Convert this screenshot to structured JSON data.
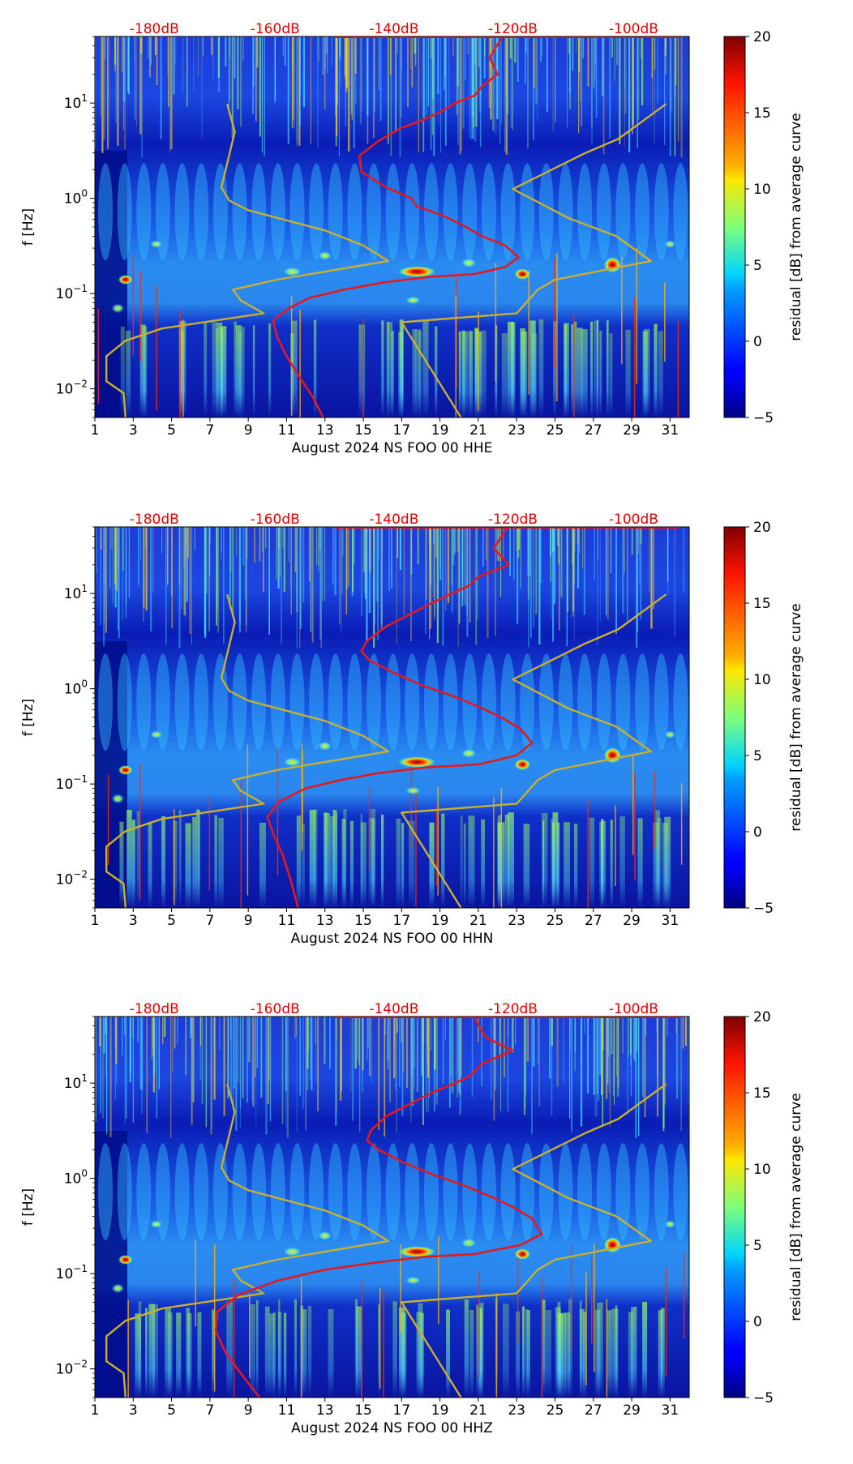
{
  "chart_data": [
    {
      "type": "heatmap",
      "title": "",
      "xlabel": "August 2024 NS FOO 00 HHE",
      "ylabel": "f [Hz]",
      "x_ticks": [
        "1",
        "3",
        "5",
        "7",
        "9",
        "11",
        "13",
        "15",
        "17",
        "19",
        "21",
        "23",
        "25",
        "27",
        "29",
        "31"
      ],
      "x_tick_values": [
        1,
        3,
        5,
        7,
        9,
        11,
        13,
        15,
        17,
        19,
        21,
        23,
        25,
        27,
        29,
        31
      ],
      "xlim": [
        1,
        32
      ],
      "y_scale": "log",
      "ylim": [
        0.005,
        50
      ],
      "y_ticks": [
        {
          "base": "10",
          "exp": "−2",
          "value": 0.01
        },
        {
          "base": "10",
          "exp": "−1",
          "value": 0.1
        },
        {
          "base": "10",
          "exp": "0",
          "value": 1
        },
        {
          "base": "10",
          "exp": "1",
          "value": 10
        }
      ],
      "top_axis_labels": [
        "-180dB",
        "-160dB",
        "-140dB",
        "-120dB",
        "-100dB"
      ],
      "top_axis_positions": [
        4.1,
        10.4,
        16.6,
        22.8,
        29.1
      ],
      "colorbar": {
        "label": "residual [dB] from average curve",
        "min": -5,
        "max": 20,
        "ticks": [
          "20",
          "15",
          "10",
          "5",
          "0",
          "−5"
        ],
        "tick_values": [
          20,
          15,
          10,
          5,
          0,
          -5
        ]
      },
      "series": [
        {
          "name": "low/high noise model",
          "color": "#c8b02e",
          "x": [
            7.9,
            8.3,
            7.6,
            8.0,
            9.0,
            13.0,
            15.0,
            16.3,
            10.5,
            8.2,
            8.6,
            9.8,
            4.5,
            2.6,
            1.6,
            1.6,
            2.5,
            2.6
          ],
          "y": [
            9.8,
            5.0,
            1.3,
            0.95,
            0.75,
            0.46,
            0.32,
            0.22,
            0.14,
            0.11,
            0.085,
            0.062,
            0.043,
            0.032,
            0.022,
            0.012,
            0.009,
            0.005
          ]
        },
        {
          "name": "high noise model",
          "color": "#c8b02e",
          "x": [
            30.8,
            28.3,
            26.6,
            22.8,
            25.7,
            28.2,
            30.0,
            25.0,
            24.1,
            23.0,
            17.0,
            20.1
          ],
          "y": [
            9.8,
            4.2,
            3.0,
            1.25,
            0.62,
            0.4,
            0.22,
            0.14,
            0.11,
            0.062,
            0.05,
            0.005
          ]
        },
        {
          "name": "average PSD curve",
          "color": "#e31a1c",
          "x": [
            22.2,
            21.6,
            22.0,
            21.2,
            20.8,
            19.8,
            19.0,
            18.0,
            17.0,
            15.8,
            14.8,
            14.9,
            16.2,
            17.5,
            17.8,
            19.0,
            20.2,
            21.2,
            22.4,
            23.1,
            22.4,
            20.8,
            18.5,
            16.0,
            14.0,
            12.2,
            11.1,
            10.3,
            10.5,
            11.0,
            11.7,
            12.4,
            12.9
          ],
          "y": [
            48,
            30,
            20,
            15,
            12,
            10,
            8,
            6.5,
            5.5,
            4.0,
            2.8,
            1.9,
            1.3,
            1.0,
            0.82,
            0.68,
            0.52,
            0.4,
            0.32,
            0.24,
            0.19,
            0.16,
            0.15,
            0.13,
            0.11,
            0.09,
            0.07,
            0.052,
            0.035,
            0.022,
            0.013,
            0.008,
            0.005
          ]
        }
      ]
    },
    {
      "type": "heatmap",
      "title": "",
      "xlabel": "August 2024 NS FOO 00 HHN",
      "ylabel": "f [Hz]",
      "x_ticks": [
        "1",
        "3",
        "5",
        "7",
        "9",
        "11",
        "13",
        "15",
        "17",
        "19",
        "21",
        "23",
        "25",
        "27",
        "29",
        "31"
      ],
      "x_tick_values": [
        1,
        3,
        5,
        7,
        9,
        11,
        13,
        15,
        17,
        19,
        21,
        23,
        25,
        27,
        29,
        31
      ],
      "xlim": [
        1,
        32
      ],
      "y_scale": "log",
      "ylim": [
        0.005,
        50
      ],
      "y_ticks": [
        {
          "base": "10",
          "exp": "−2",
          "value": 0.01
        },
        {
          "base": "10",
          "exp": "−1",
          "value": 0.1
        },
        {
          "base": "10",
          "exp": "0",
          "value": 1
        },
        {
          "base": "10",
          "exp": "1",
          "value": 10
        }
      ],
      "top_axis_labels": [
        "-180dB",
        "-160dB",
        "-140dB",
        "-120dB",
        "-100dB"
      ],
      "top_axis_positions": [
        4.1,
        10.4,
        16.6,
        22.8,
        29.1
      ],
      "colorbar": {
        "label": "residual [dB] from average curve",
        "min": -5,
        "max": 20,
        "ticks": [
          "20",
          "15",
          "10",
          "5",
          "0",
          "−5"
        ],
        "tick_values": [
          20,
          15,
          10,
          5,
          0,
          -5
        ]
      },
      "series": [
        {
          "name": "low/high noise model",
          "color": "#c8b02e",
          "x": [
            7.9,
            8.3,
            7.6,
            8.0,
            9.0,
            13.0,
            15.0,
            16.3,
            10.5,
            8.2,
            8.6,
            9.8,
            4.5,
            2.6,
            1.6,
            1.6,
            2.5,
            2.6
          ],
          "y": [
            9.8,
            5.0,
            1.3,
            0.95,
            0.75,
            0.46,
            0.32,
            0.22,
            0.14,
            0.11,
            0.085,
            0.062,
            0.043,
            0.032,
            0.022,
            0.012,
            0.009,
            0.005
          ]
        },
        {
          "name": "high noise model",
          "color": "#c8b02e",
          "x": [
            30.8,
            28.3,
            26.6,
            22.8,
            25.7,
            28.2,
            30.0,
            25.0,
            24.1,
            23.0,
            17.0,
            20.1
          ],
          "y": [
            9.8,
            4.2,
            3.0,
            1.25,
            0.62,
            0.4,
            0.22,
            0.14,
            0.11,
            0.062,
            0.05,
            0.005
          ]
        },
        {
          "name": "average PSD curve",
          "color": "#e31a1c",
          "x": [
            22.5,
            21.8,
            22.6,
            21.0,
            20.5,
            19.6,
            18.6,
            17.4,
            16.2,
            15.2,
            14.9,
            15.3,
            16.5,
            18.0,
            19.6,
            21.0,
            22.2,
            23.2,
            23.8,
            23.0,
            21.0,
            18.4,
            15.8,
            13.8,
            12.0,
            10.6,
            10.0,
            10.3,
            10.8,
            11.2,
            11.6
          ],
          "y": [
            48,
            30,
            20,
            15,
            12,
            10,
            8,
            6,
            4.5,
            3.2,
            2.5,
            2.0,
            1.5,
            1.1,
            0.85,
            0.65,
            0.5,
            0.38,
            0.27,
            0.2,
            0.16,
            0.15,
            0.13,
            0.11,
            0.09,
            0.065,
            0.045,
            0.03,
            0.018,
            0.01,
            0.005
          ]
        }
      ]
    },
    {
      "type": "heatmap",
      "title": "",
      "xlabel": "August 2024 NS FOO 00 HHZ",
      "ylabel": "f [Hz]",
      "x_ticks": [
        "1",
        "3",
        "5",
        "7",
        "9",
        "11",
        "13",
        "15",
        "17",
        "19",
        "21",
        "23",
        "25",
        "27",
        "29",
        "31"
      ],
      "x_tick_values": [
        1,
        3,
        5,
        7,
        9,
        11,
        13,
        15,
        17,
        19,
        21,
        23,
        25,
        27,
        29,
        31
      ],
      "xlim": [
        1,
        32
      ],
      "y_scale": "log",
      "ylim": [
        0.005,
        50
      ],
      "y_ticks": [
        {
          "base": "10",
          "exp": "−2",
          "value": 0.01
        },
        {
          "base": "10",
          "exp": "−1",
          "value": 0.1
        },
        {
          "base": "10",
          "exp": "0",
          "value": 1
        },
        {
          "base": "10",
          "exp": "1",
          "value": 10
        }
      ],
      "top_axis_labels": [
        "-180dB",
        "-160dB",
        "-140dB",
        "-120dB",
        "-100dB"
      ],
      "top_axis_positions": [
        4.1,
        10.4,
        16.6,
        22.8,
        29.1
      ],
      "colorbar": {
        "label": "residual [dB] from average curve",
        "min": -5,
        "max": 20,
        "ticks": [
          "20",
          "15",
          "10",
          "5",
          "0",
          "−5"
        ],
        "tick_values": [
          20,
          15,
          10,
          5,
          0,
          -5
        ]
      },
      "series": [
        {
          "name": "low/high noise model",
          "color": "#c8b02e",
          "x": [
            7.9,
            8.3,
            7.6,
            8.0,
            9.0,
            13.0,
            15.0,
            16.3,
            10.5,
            8.2,
            8.6,
            9.8,
            4.5,
            2.6,
            1.6,
            1.6,
            2.5,
            2.6
          ],
          "y": [
            9.8,
            5.0,
            1.3,
            0.95,
            0.75,
            0.46,
            0.32,
            0.22,
            0.14,
            0.11,
            0.085,
            0.062,
            0.043,
            0.032,
            0.022,
            0.012,
            0.009,
            0.005
          ]
        },
        {
          "name": "high noise model",
          "color": "#c8b02e",
          "x": [
            30.8,
            28.3,
            26.6,
            22.8,
            25.7,
            28.2,
            30.0,
            25.0,
            24.1,
            23.0,
            17.0,
            20.1
          ],
          "y": [
            9.8,
            4.2,
            3.0,
            1.25,
            0.62,
            0.4,
            0.22,
            0.14,
            0.11,
            0.062,
            0.05,
            0.005
          ]
        },
        {
          "name": "average PSD curve",
          "color": "#e31a1c",
          "x": [
            20.8,
            21.4,
            22.8,
            21.2,
            20.6,
            19.8,
            18.6,
            17.4,
            16.2,
            15.4,
            15.2,
            15.8,
            17.0,
            18.6,
            20.2,
            21.6,
            22.8,
            23.8,
            24.3,
            23.2,
            20.8,
            18.2,
            15.6,
            13.0,
            10.6,
            8.5,
            7.4,
            7.3,
            7.8,
            8.6,
            9.6
          ],
          "y": [
            48,
            30,
            22,
            16,
            12,
            10,
            8,
            6,
            4.5,
            3.2,
            2.5,
            2.0,
            1.5,
            1.1,
            0.85,
            0.65,
            0.5,
            0.38,
            0.26,
            0.2,
            0.16,
            0.15,
            0.13,
            0.11,
            0.085,
            0.06,
            0.04,
            0.025,
            0.015,
            0.009,
            0.005
          ]
        }
      ]
    }
  ]
}
